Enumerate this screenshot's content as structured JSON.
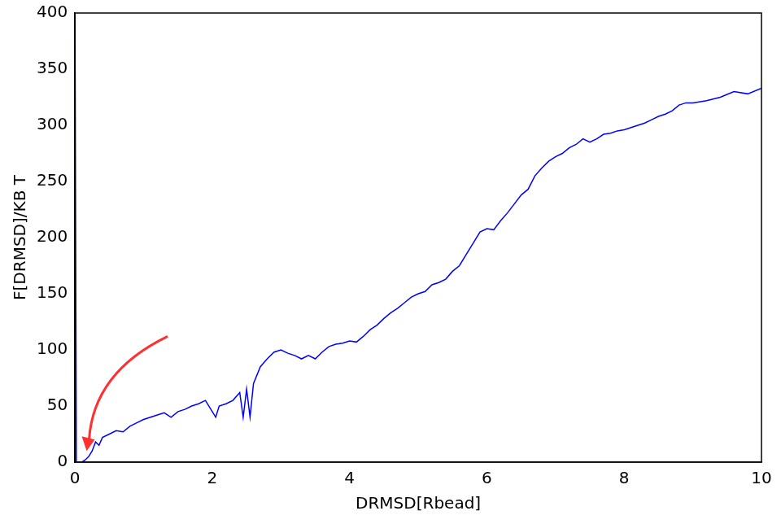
{
  "chart_data": {
    "type": "line",
    "x_label": "DRMSD[Rbead]",
    "y_label": "F[DRMSD]/KB T",
    "color": "#0000ff",
    "grid": false,
    "xlim": [
      0,
      10
    ],
    "ylim": [
      0,
      400
    ],
    "xticks": [
      0,
      2,
      4,
      6,
      8,
      10
    ],
    "yticks": [
      0,
      50,
      100,
      150,
      200,
      250,
      300,
      350,
      400
    ],
    "x": [
      0.0,
      0.02,
      0.1,
      0.15,
      0.2,
      0.25,
      0.3,
      0.35,
      0.4,
      0.5,
      0.6,
      0.7,
      0.8,
      0.9,
      1.0,
      1.1,
      1.2,
      1.3,
      1.4,
      1.5,
      1.6,
      1.7,
      1.8,
      1.9,
      2.0,
      2.05,
      2.1,
      2.2,
      2.3,
      2.4,
      2.45,
      2.5,
      2.55,
      2.6,
      2.7,
      2.8,
      2.9,
      3.0,
      3.1,
      3.2,
      3.3,
      3.4,
      3.5,
      3.6,
      3.7,
      3.8,
      3.9,
      4.0,
      4.1,
      4.2,
      4.3,
      4.4,
      4.5,
      4.6,
      4.7,
      4.8,
      4.9,
      5.0,
      5.1,
      5.2,
      5.3,
      5.4,
      5.5,
      5.6,
      5.7,
      5.8,
      5.9,
      6.0,
      6.1,
      6.2,
      6.3,
      6.4,
      6.5,
      6.6,
      6.7,
      6.8,
      6.9,
      7.0,
      7.1,
      7.2,
      7.3,
      7.4,
      7.5,
      7.6,
      7.7,
      7.8,
      7.9,
      8.0,
      8.1,
      8.2,
      8.3,
      8.4,
      8.5,
      8.6,
      8.7,
      8.8,
      8.9,
      9.0,
      9.2,
      9.4,
      9.6,
      9.8,
      10.0
    ],
    "values": [
      400,
      0,
      0,
      2,
      5,
      10,
      18,
      15,
      22,
      25,
      28,
      27,
      32,
      35,
      38,
      40,
      42,
      44,
      40,
      45,
      47,
      50,
      52,
      55,
      45,
      40,
      50,
      52,
      55,
      62,
      40,
      65,
      40,
      70,
      85,
      92,
      98,
      100,
      97,
      95,
      92,
      95,
      92,
      98,
      103,
      105,
      106,
      108,
      107,
      112,
      118,
      122,
      128,
      133,
      137,
      142,
      147,
      150,
      152,
      158,
      160,
      163,
      170,
      175,
      185,
      195,
      205,
      208,
      207,
      215,
      222,
      230,
      238,
      243,
      255,
      262,
      268,
      272,
      275,
      280,
      283,
      288,
      285,
      288,
      292,
      293,
      295,
      296,
      298,
      300,
      302,
      305,
      308,
      310,
      313,
      318,
      320,
      320,
      322,
      325,
      330,
      328,
      333
    ]
  }
}
